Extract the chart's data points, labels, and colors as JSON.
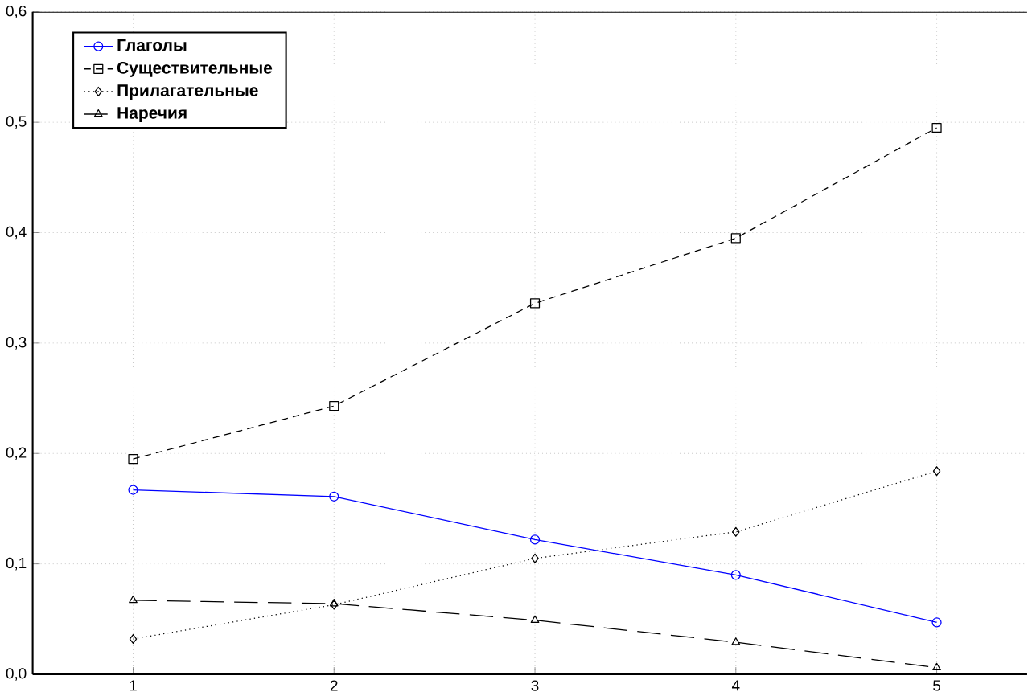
{
  "chart_data": {
    "type": "line",
    "x": [
      1,
      2,
      3,
      4,
      5
    ],
    "xlim": [
      0.5,
      5.45
    ],
    "xticks": [
      1,
      2,
      3,
      4,
      5
    ],
    "ylim": [
      0,
      0.6
    ],
    "yticks": [
      {
        "value": 0,
        "label": "0,0"
      },
      {
        "value": 0.1,
        "label": "0,1"
      },
      {
        "value": 0.2,
        "label": "0,2"
      },
      {
        "value": 0.3,
        "label": "0,3"
      },
      {
        "value": 0.4,
        "label": "0,4"
      },
      {
        "value": 0.5,
        "label": "0,5"
      },
      {
        "value": 0.6,
        "label": "0,6"
      }
    ],
    "grid": true,
    "legend": "top left",
    "series": [
      {
        "name": "Глаголы",
        "color": "#0000ff",
        "marker": "circle",
        "line_style": "solid",
        "values": [
          0.167,
          0.161,
          0.122,
          0.09,
          0.047
        ]
      },
      {
        "name": "Существительные",
        "color": "#000000",
        "marker": "square",
        "line_style": "dashed",
        "values": [
          0.195,
          0.243,
          0.336,
          0.395,
          0.495
        ]
      },
      {
        "name": "Прилагательные",
        "color": "#000000",
        "marker": "diamond",
        "line_style": "dotted",
        "values": [
          0.032,
          0.063,
          0.105,
          0.129,
          0.184
        ]
      },
      {
        "name": "Наречия",
        "color": "#000000",
        "marker": "triangle",
        "line_style": "dashed",
        "values": [
          0.067,
          0.064,
          0.049,
          0.029,
          0.006
        ]
      }
    ]
  }
}
